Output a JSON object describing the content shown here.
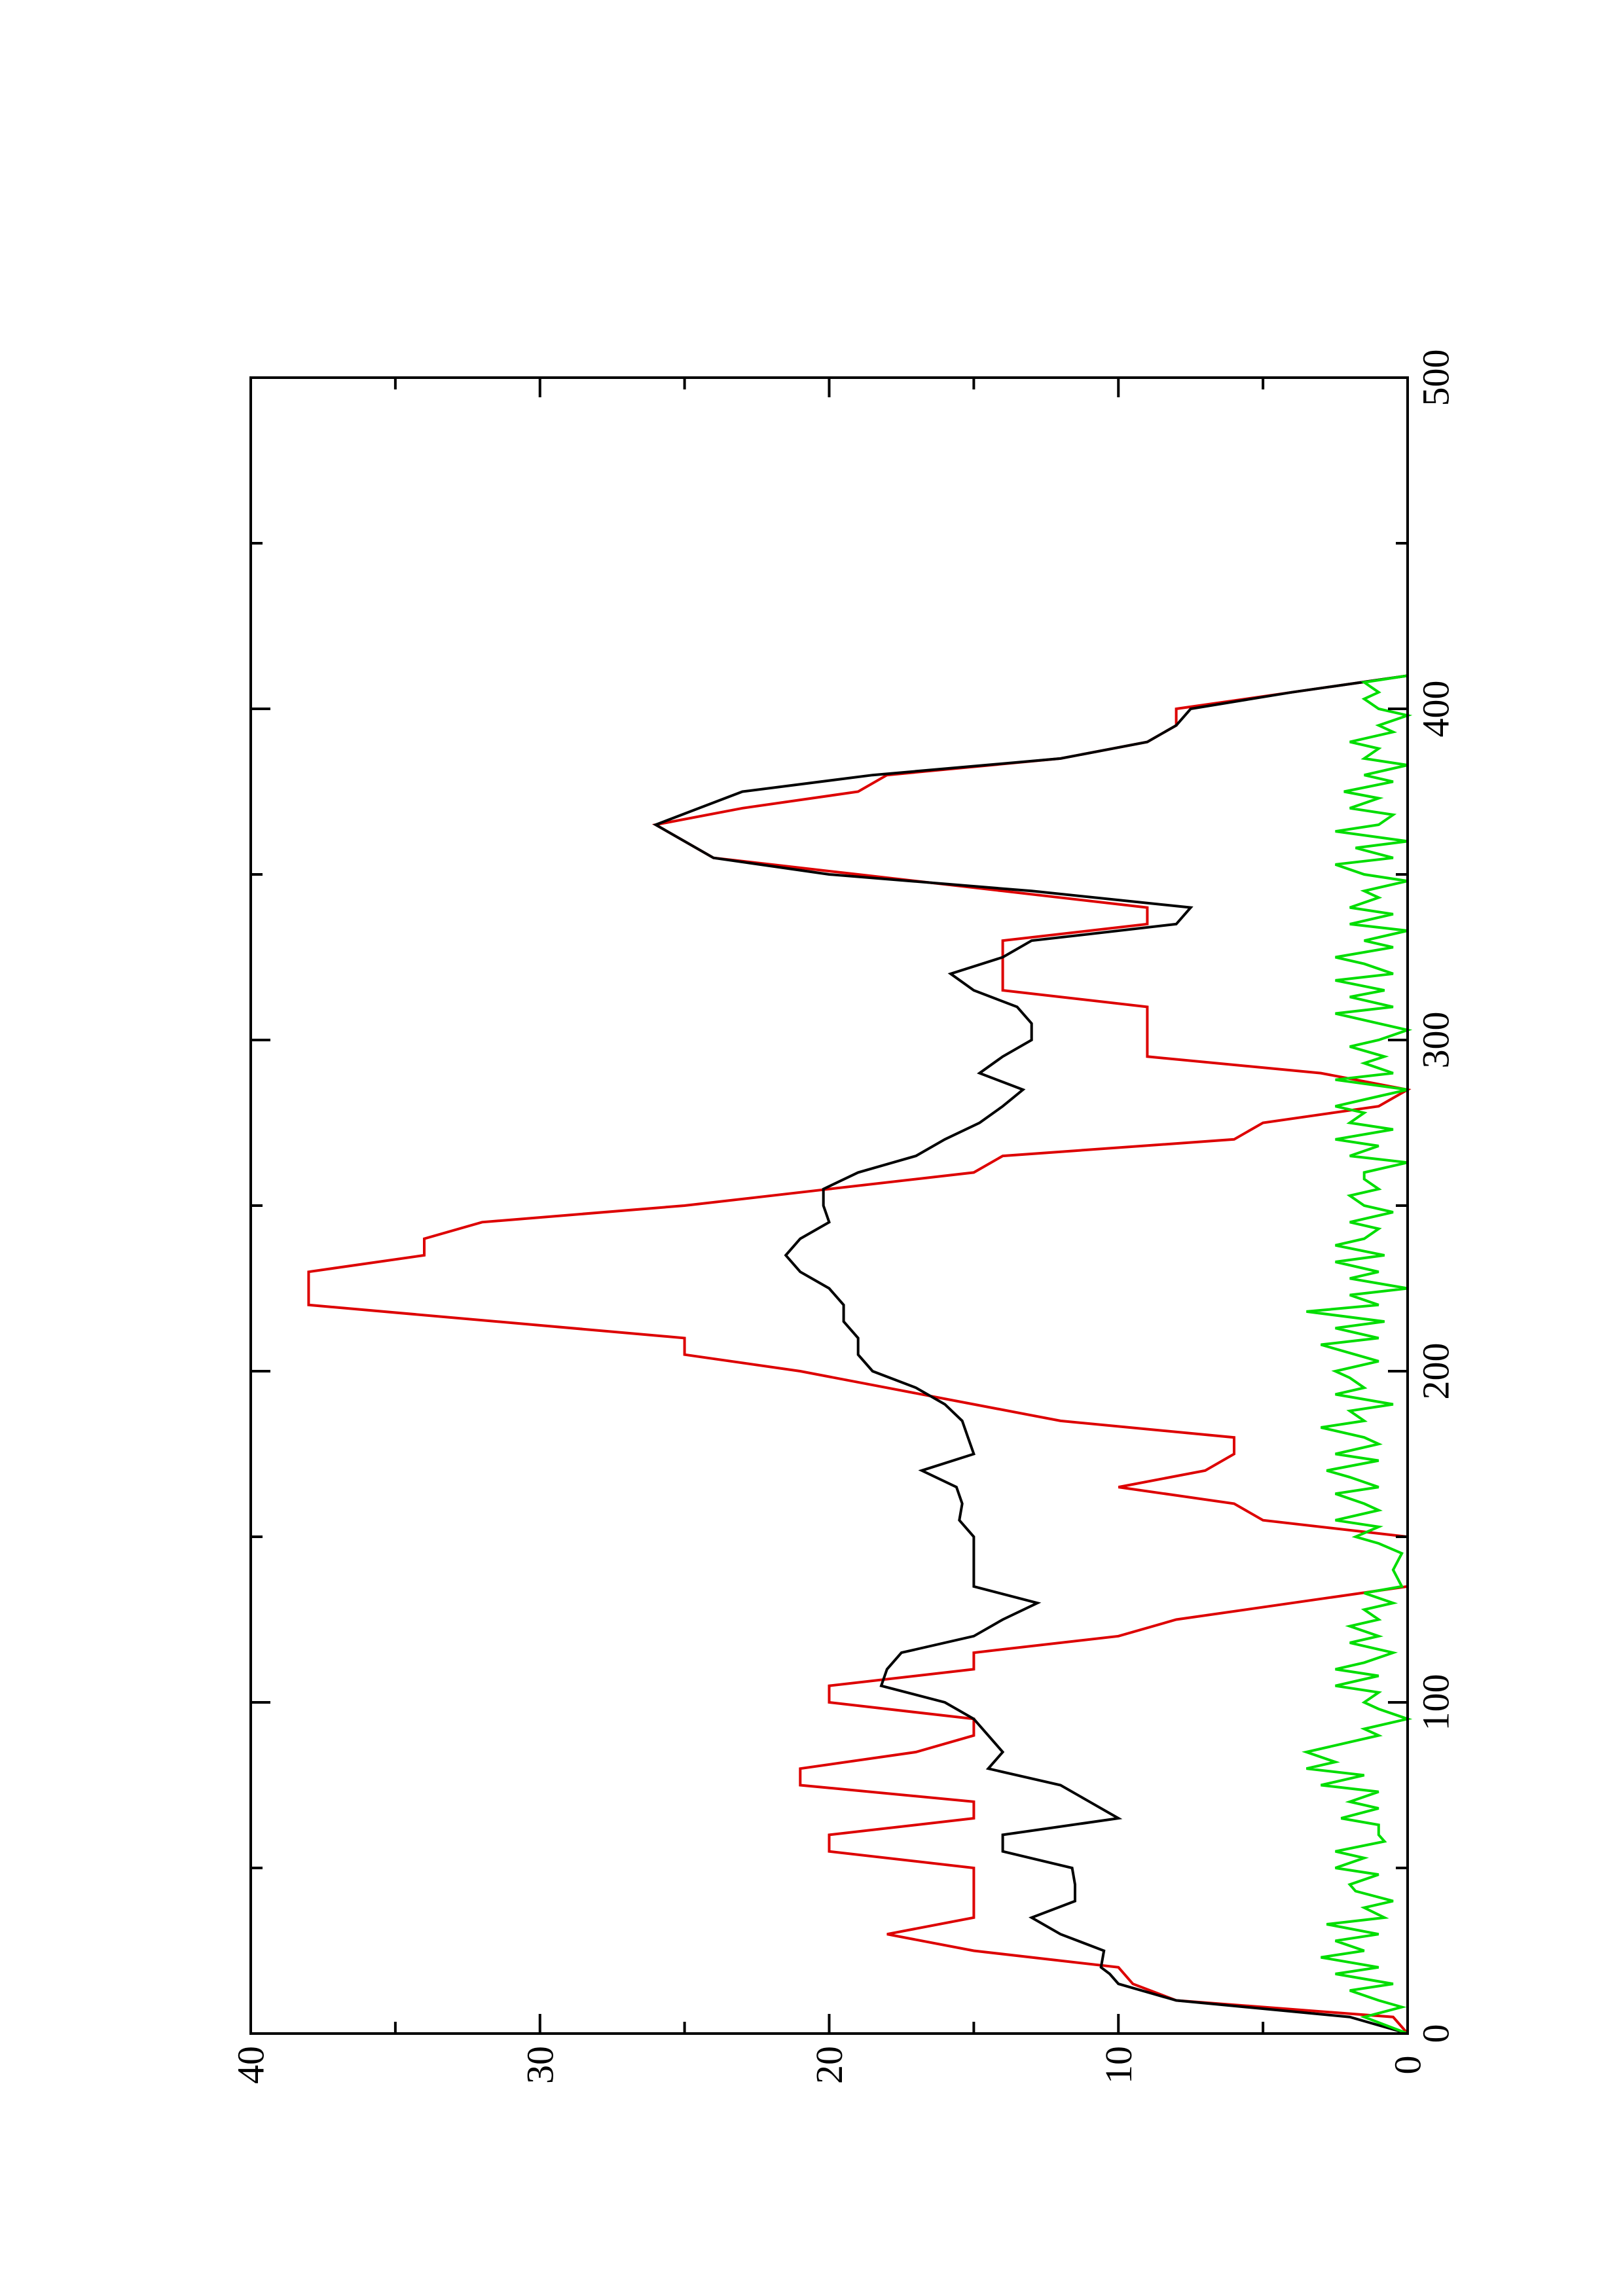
{
  "chart_data": {
    "type": "line",
    "orientation": "rotated-90-counterclockwise",
    "title": "",
    "xlabel": "",
    "ylabel": "",
    "xlim": [
      0,
      500
    ],
    "ylim": [
      0,
      40
    ],
    "x_ticks": [
      0,
      100,
      200,
      300,
      400,
      500
    ],
    "x_minor_ticks": [
      50,
      150,
      250,
      350,
      450
    ],
    "y_ticks": [
      0,
      10,
      20,
      30,
      40
    ],
    "y_minor_ticks": [
      5,
      15,
      25,
      35
    ],
    "x_tick_labels": [
      "0",
      "100",
      "200",
      "300",
      "400",
      "500"
    ],
    "y_tick_labels": [
      "0",
      "10",
      "20",
      "30",
      "40"
    ],
    "grid": false,
    "legend": "none",
    "series": [
      {
        "color": "#dd0000",
        "style": "step-line",
        "points": [
          [
            0,
            0
          ],
          [
            5,
            0.5
          ],
          [
            10,
            8
          ],
          [
            15,
            9.5
          ],
          [
            20,
            10
          ],
          [
            25,
            15
          ],
          [
            30,
            18
          ],
          [
            35,
            15
          ],
          [
            40,
            15
          ],
          [
            50,
            15
          ],
          [
            55,
            20
          ],
          [
            60,
            20
          ],
          [
            65,
            15
          ],
          [
            70,
            15
          ],
          [
            75,
            21
          ],
          [
            80,
            21
          ],
          [
            85,
            17
          ],
          [
            90,
            15
          ],
          [
            95,
            15
          ],
          [
            100,
            20
          ],
          [
            105,
            20
          ],
          [
            110,
            15
          ],
          [
            115,
            15
          ],
          [
            120,
            10
          ],
          [
            125,
            8
          ],
          [
            130,
            4
          ],
          [
            135,
            0
          ],
          [
            145,
            0
          ],
          [
            150,
            0
          ],
          [
            155,
            5
          ],
          [
            160,
            6
          ],
          [
            165,
            10
          ],
          [
            170,
            7
          ],
          [
            175,
            6
          ],
          [
            180,
            6
          ],
          [
            185,
            12
          ],
          [
            190,
            15
          ],
          [
            195,
            18
          ],
          [
            200,
            21
          ],
          [
            205,
            25
          ],
          [
            210,
            25
          ],
          [
            220,
            38
          ],
          [
            225,
            38
          ],
          [
            230,
            38
          ],
          [
            235,
            34
          ],
          [
            240,
            34
          ],
          [
            245,
            32
          ],
          [
            250,
            25
          ],
          [
            255,
            20
          ],
          [
            260,
            15
          ],
          [
            265,
            14
          ],
          [
            270,
            6
          ],
          [
            275,
            5
          ],
          [
            280,
            1
          ],
          [
            285,
            0
          ],
          [
            290,
            3
          ],
          [
            295,
            9
          ],
          [
            300,
            9
          ],
          [
            310,
            9
          ],
          [
            315,
            14
          ],
          [
            320,
            14
          ],
          [
            330,
            14
          ],
          [
            335,
            9
          ],
          [
            340,
            9
          ],
          [
            345,
            14
          ],
          [
            350,
            19
          ],
          [
            355,
            24
          ],
          [
            360,
            25
          ],
          [
            365,
            26
          ],
          [
            370,
            23
          ],
          [
            375,
            19
          ],
          [
            380,
            18
          ],
          [
            385,
            12
          ],
          [
            390,
            9
          ],
          [
            395,
            8
          ],
          [
            400,
            8
          ],
          [
            405,
            4
          ],
          [
            410,
            0
          ]
        ]
      },
      {
        "color": "#000000",
        "style": "line",
        "points": [
          [
            0,
            0
          ],
          [
            5,
            2
          ],
          [
            10,
            8
          ],
          [
            15,
            10
          ],
          [
            18,
            10.3
          ],
          [
            20,
            10.6
          ],
          [
            25,
            10.5
          ],
          [
            30,
            12
          ],
          [
            35,
            13
          ],
          [
            40,
            11.5
          ],
          [
            45,
            11.5
          ],
          [
            50,
            11.6
          ],
          [
            55,
            14
          ],
          [
            60,
            14
          ],
          [
            65,
            10
          ],
          [
            70,
            11
          ],
          [
            75,
            12
          ],
          [
            80,
            14.5
          ],
          [
            85,
            14
          ],
          [
            90,
            14.5
          ],
          [
            95,
            15
          ],
          [
            100,
            16
          ],
          [
            105,
            18.2
          ],
          [
            110,
            18
          ],
          [
            115,
            17.5
          ],
          [
            120,
            15
          ],
          [
            125,
            14
          ],
          [
            130,
            12.8
          ],
          [
            135,
            15
          ],
          [
            140,
            15
          ],
          [
            145,
            15
          ],
          [
            150,
            15
          ],
          [
            155,
            15.5
          ],
          [
            160,
            15.4
          ],
          [
            165,
            15.6
          ],
          [
            170,
            16.8
          ],
          [
            175,
            15
          ],
          [
            180,
            15.2
          ],
          [
            185,
            15.4
          ],
          [
            190,
            16
          ],
          [
            195,
            17
          ],
          [
            200,
            18.5
          ],
          [
            205,
            19
          ],
          [
            210,
            19
          ],
          [
            215,
            19.5
          ],
          [
            220,
            19.5
          ],
          [
            225,
            20
          ],
          [
            230,
            21
          ],
          [
            235,
            21.5
          ],
          [
            240,
            21
          ],
          [
            245,
            20
          ],
          [
            250,
            20.2
          ],
          [
            255,
            20.2
          ],
          [
            260,
            19
          ],
          [
            265,
            17
          ],
          [
            270,
            16
          ],
          [
            275,
            14.8
          ],
          [
            280,
            14
          ],
          [
            285,
            13.3
          ],
          [
            290,
            14.8
          ],
          [
            295,
            14
          ],
          [
            300,
            13
          ],
          [
            305,
            13
          ],
          [
            310,
            13.5
          ],
          [
            315,
            15
          ],
          [
            320,
            15.8
          ],
          [
            325,
            14
          ],
          [
            330,
            13
          ],
          [
            335,
            8
          ],
          [
            340,
            7.5
          ],
          [
            345,
            13
          ],
          [
            350,
            20
          ],
          [
            355,
            24
          ],
          [
            360,
            25
          ],
          [
            365,
            26
          ],
          [
            370,
            24.5
          ],
          [
            375,
            23
          ],
          [
            380,
            18.5
          ],
          [
            385,
            12
          ],
          [
            390,
            9
          ],
          [
            395,
            8
          ],
          [
            400,
            7.5
          ],
          [
            405,
            4
          ],
          [
            410,
            0
          ]
        ]
      },
      {
        "color": "#00dd00",
        "style": "line",
        "points": [
          [
            0,
            0
          ],
          [
            5,
            1.5
          ],
          [
            8,
            0.2
          ],
          [
            10,
            1
          ],
          [
            13,
            2
          ],
          [
            15,
            0.5
          ],
          [
            18,
            2.5
          ],
          [
            20,
            1
          ],
          [
            23,
            3
          ],
          [
            25,
            1.5
          ],
          [
            28,
            2.5
          ],
          [
            30,
            1
          ],
          [
            33,
            2.8
          ],
          [
            35,
            0.8
          ],
          [
            38,
            1.5
          ],
          [
            40,
            0.5
          ],
          [
            43,
            1.8
          ],
          [
            45,
            2
          ],
          [
            48,
            1
          ],
          [
            50,
            2.5
          ],
          [
            53,
            1.5
          ],
          [
            55,
            2.5
          ],
          [
            58,
            0.8
          ],
          [
            60,
            1
          ],
          [
            63,
            1
          ],
          [
            65,
            2.3
          ],
          [
            68,
            1
          ],
          [
            70,
            2
          ],
          [
            73,
            1
          ],
          [
            75,
            3
          ],
          [
            78,
            1.5
          ],
          [
            80,
            3.5
          ],
          [
            82,
            2.5
          ],
          [
            85,
            3.5
          ],
          [
            88,
            2
          ],
          [
            90,
            1
          ],
          [
            92,
            1.5
          ],
          [
            95,
            0
          ],
          [
            98,
            1
          ],
          [
            100,
            1.5
          ],
          [
            103,
            1
          ],
          [
            105,
            2.5
          ],
          [
            108,
            1
          ],
          [
            110,
            2.5
          ],
          [
            112,
            1.5
          ],
          [
            115,
            0.5
          ],
          [
            118,
            2
          ],
          [
            120,
            1
          ],
          [
            123,
            2
          ],
          [
            125,
            1
          ],
          [
            128,
            1.5
          ],
          [
            130,
            0.5
          ],
          [
            133,
            1.5
          ],
          [
            135,
            0.2
          ],
          [
            140,
            0.5
          ],
          [
            145,
            0.2
          ],
          [
            148,
            1
          ],
          [
            150,
            1.8
          ],
          [
            153,
            1
          ],
          [
            155,
            2.5
          ],
          [
            158,
            1
          ],
          [
            160,
            1.5
          ],
          [
            163,
            2.5
          ],
          [
            165,
            1
          ],
          [
            168,
            2
          ],
          [
            170,
            2.8
          ],
          [
            173,
            1
          ],
          [
            175,
            2.5
          ],
          [
            178,
            1
          ],
          [
            180,
            1.5
          ],
          [
            183,
            3
          ],
          [
            185,
            1.5
          ],
          [
            188,
            2
          ],
          [
            190,
            0.5
          ],
          [
            193,
            2.5
          ],
          [
            195,
            1.5
          ],
          [
            198,
            2
          ],
          [
            200,
            2.5
          ],
          [
            203,
            1
          ],
          [
            205,
            1.8
          ],
          [
            208,
            3
          ],
          [
            210,
            1
          ],
          [
            213,
            2.5
          ],
          [
            215,
            0.8
          ],
          [
            218,
            3.5
          ],
          [
            220,
            1
          ],
          [
            223,
            2
          ],
          [
            225,
            0
          ],
          [
            228,
            2
          ],
          [
            230,
            1
          ],
          [
            233,
            2.5
          ],
          [
            235,
            0.8
          ],
          [
            238,
            2.5
          ],
          [
            240,
            1.5
          ],
          [
            243,
            1
          ],
          [
            245,
            2
          ],
          [
            248,
            0.5
          ],
          [
            250,
            1.5
          ],
          [
            253,
            2
          ],
          [
            255,
            1
          ],
          [
            258,
            1.5
          ],
          [
            260,
            1.5
          ],
          [
            263,
            0
          ],
          [
            265,
            2
          ],
          [
            268,
            1
          ],
          [
            270,
            2.5
          ],
          [
            273,
            0.5
          ],
          [
            275,
            2
          ],
          [
            278,
            1.5
          ],
          [
            280,
            2.5
          ],
          [
            283,
            1
          ],
          [
            285,
            0
          ],
          [
            288,
            2.5
          ],
          [
            290,
            0.5
          ],
          [
            293,
            1.5
          ],
          [
            295,
            0.8
          ],
          [
            298,
            2
          ],
          [
            300,
            1
          ],
          [
            303,
            0
          ],
          [
            305,
            1
          ],
          [
            308,
            2.5
          ],
          [
            310,
            0.5
          ],
          [
            313,
            2
          ],
          [
            315,
            0.8
          ],
          [
            318,
            2.5
          ],
          [
            320,
            0.5
          ],
          [
            323,
            1.5
          ],
          [
            325,
            2.5
          ],
          [
            328,
            0.5
          ],
          [
            330,
            1.5
          ],
          [
            333,
            0
          ],
          [
            335,
            2
          ],
          [
            338,
            0.5
          ],
          [
            340,
            2
          ],
          [
            343,
            1
          ],
          [
            345,
            1.5
          ],
          [
            348,
            0
          ],
          [
            350,
            1.5
          ],
          [
            353,
            2.5
          ],
          [
            355,
            0.5
          ],
          [
            358,
            1.8
          ],
          [
            360,
            0
          ],
          [
            363,
            2.5
          ],
          [
            365,
            1
          ],
          [
            368,
            0.5
          ],
          [
            370,
            2
          ],
          [
            373,
            1
          ],
          [
            375,
            2.2
          ],
          [
            378,
            0.5
          ],
          [
            380,
            1.5
          ],
          [
            383,
            0
          ],
          [
            385,
            1.5
          ],
          [
            388,
            1
          ],
          [
            390,
            2
          ],
          [
            393,
            0.5
          ],
          [
            395,
            1
          ],
          [
            398,
            0
          ],
          [
            400,
            1
          ],
          [
            403,
            1.5
          ],
          [
            405,
            1
          ],
          [
            408,
            1.5
          ],
          [
            410,
            0
          ]
        ]
      }
    ]
  }
}
